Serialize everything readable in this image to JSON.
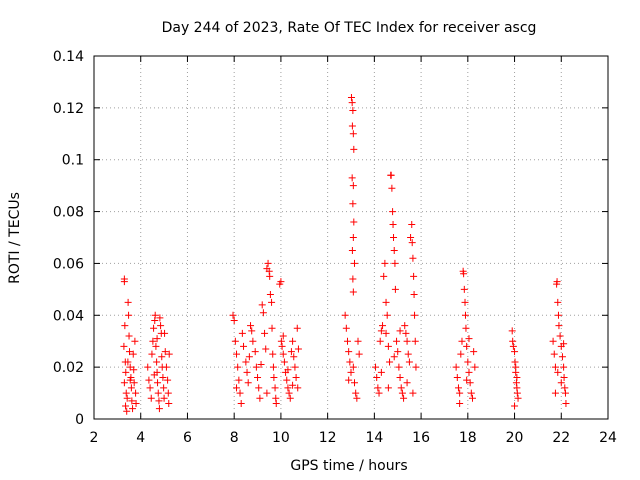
{
  "chart_data": {
    "type": "scatter",
    "title": "Day 244 of 2023, Rate Of TEC Index for receiver ascg",
    "xlabel": "GPS time / hours",
    "ylabel": "ROTI / TECUs",
    "xlim": [
      2,
      24
    ],
    "ylim": [
      0,
      0.14
    ],
    "x_ticks": [
      "2",
      "4",
      "6",
      "8",
      "10",
      "12",
      "14",
      "16",
      "18",
      "20",
      "22",
      "24"
    ],
    "y_ticks": [
      "0",
      "0.02",
      "0.04",
      "0.06",
      "0.08",
      "0.1",
      "0.12",
      "0.14"
    ],
    "grid": true,
    "marker": "+",
    "color": "#ff0000",
    "series": [
      {
        "points": [
          [
            3.3,
            0.054
          ],
          [
            3.3,
            0.053
          ],
          [
            3.32,
            0.036
          ],
          [
            3.28,
            0.028
          ],
          [
            3.34,
            0.022
          ],
          [
            3.36,
            0.018
          ],
          [
            3.3,
            0.014
          ],
          [
            3.38,
            0.01
          ],
          [
            3.42,
            0.008
          ],
          [
            3.35,
            0.005
          ],
          [
            3.4,
            0.003
          ],
          [
            3.46,
            0.045
          ],
          [
            3.48,
            0.04
          ],
          [
            3.5,
            0.032
          ],
          [
            3.52,
            0.026
          ],
          [
            3.55,
            0.02
          ],
          [
            3.58,
            0.016
          ],
          [
            3.6,
            0.012
          ],
          [
            3.62,
            0.007
          ],
          [
            3.65,
            0.004
          ],
          [
            3.68,
            0.025
          ],
          [
            3.7,
            0.019
          ],
          [
            3.72,
            0.014
          ],
          [
            3.75,
            0.03
          ],
          [
            3.78,
            0.01
          ],
          [
            3.8,
            0.006
          ],
          [
            3.45,
            0.022
          ],
          [
            3.55,
            0.015
          ],
          [
            4.3,
            0.02
          ],
          [
            4.35,
            0.015
          ],
          [
            4.4,
            0.012
          ],
          [
            4.45,
            0.008
          ],
          [
            4.48,
            0.025
          ],
          [
            4.52,
            0.03
          ],
          [
            4.55,
            0.035
          ],
          [
            4.6,
            0.038
          ],
          [
            4.62,
            0.04
          ],
          [
            4.65,
            0.028
          ],
          [
            4.68,
            0.022
          ],
          [
            4.7,
            0.018
          ],
          [
            4.72,
            0.014
          ],
          [
            4.75,
            0.01
          ],
          [
            4.78,
            0.007
          ],
          [
            4.8,
            0.004
          ],
          [
            4.82,
            0.039
          ],
          [
            4.85,
            0.036
          ],
          [
            4.88,
            0.033
          ],
          [
            4.9,
            0.024
          ],
          [
            4.92,
            0.02
          ],
          [
            4.95,
            0.016
          ],
          [
            4.98,
            0.012
          ],
          [
            5.0,
            0.008
          ],
          [
            5.05,
            0.026
          ],
          [
            5.1,
            0.02
          ],
          [
            5.15,
            0.015
          ],
          [
            5.18,
            0.01
          ],
          [
            5.2,
            0.006
          ],
          [
            5.22,
            0.025
          ],
          [
            4.58,
            0.017
          ],
          [
            4.7,
            0.031
          ],
          [
            5.02,
            0.033
          ],
          [
            7.95,
            0.04
          ],
          [
            8.0,
            0.038
          ],
          [
            8.05,
            0.03
          ],
          [
            8.1,
            0.025
          ],
          [
            8.15,
            0.02
          ],
          [
            8.2,
            0.015
          ],
          [
            8.25,
            0.01
          ],
          [
            8.3,
            0.006
          ],
          [
            8.4,
            0.028
          ],
          [
            8.5,
            0.022
          ],
          [
            8.55,
            0.018
          ],
          [
            8.6,
            0.014
          ],
          [
            8.7,
            0.036
          ],
          [
            8.75,
            0.034
          ],
          [
            8.8,
            0.03
          ],
          [
            8.9,
            0.026
          ],
          [
            8.95,
            0.02
          ],
          [
            9.0,
            0.016
          ],
          [
            9.05,
            0.012
          ],
          [
            9.1,
            0.008
          ],
          [
            9.2,
            0.044
          ],
          [
            9.25,
            0.041
          ],
          [
            9.3,
            0.033
          ],
          [
            9.35,
            0.027
          ],
          [
            9.4,
            0.058
          ],
          [
            9.45,
            0.06
          ],
          [
            9.5,
            0.057
          ],
          [
            9.52,
            0.055
          ],
          [
            9.55,
            0.048
          ],
          [
            9.6,
            0.045
          ],
          [
            9.62,
            0.035
          ],
          [
            9.65,
            0.025
          ],
          [
            9.68,
            0.02
          ],
          [
            9.7,
            0.016
          ],
          [
            9.75,
            0.012
          ],
          [
            9.78,
            0.008
          ],
          [
            9.8,
            0.006
          ],
          [
            8.35,
            0.033
          ],
          [
            8.65,
            0.024
          ],
          [
            9.15,
            0.021
          ],
          [
            8.1,
            0.012
          ],
          [
            9.4,
            0.01
          ],
          [
            9.95,
            0.052
          ],
          [
            10.0,
            0.053
          ],
          [
            10.02,
            0.03
          ],
          [
            10.05,
            0.028
          ],
          [
            10.1,
            0.025
          ],
          [
            10.15,
            0.022
          ],
          [
            10.2,
            0.018
          ],
          [
            10.25,
            0.015
          ],
          [
            10.3,
            0.012
          ],
          [
            10.35,
            0.01
          ],
          [
            10.4,
            0.008
          ],
          [
            10.45,
            0.026
          ],
          [
            10.5,
            0.03
          ],
          [
            10.55,
            0.024
          ],
          [
            10.6,
            0.02
          ],
          [
            10.65,
            0.016
          ],
          [
            10.7,
            0.035
          ],
          [
            10.72,
            0.012
          ],
          [
            10.75,
            0.027
          ],
          [
            10.1,
            0.032
          ],
          [
            10.3,
            0.019
          ],
          [
            10.5,
            0.013
          ],
          [
            12.75,
            0.04
          ],
          [
            12.8,
            0.035
          ],
          [
            12.85,
            0.03
          ],
          [
            12.9,
            0.026
          ],
          [
            12.95,
            0.022
          ],
          [
            13.0,
            0.018
          ],
          [
            13.02,
            0.124
          ],
          [
            13.05,
            0.122
          ],
          [
            13.08,
            0.119
          ],
          [
            13.06,
            0.113
          ],
          [
            13.1,
            0.11
          ],
          [
            13.12,
            0.104
          ],
          [
            13.05,
            0.093
          ],
          [
            13.1,
            0.09
          ],
          [
            13.08,
            0.083
          ],
          [
            13.12,
            0.076
          ],
          [
            13.1,
            0.07
          ],
          [
            13.06,
            0.065
          ],
          [
            13.15,
            0.06
          ],
          [
            13.08,
            0.054
          ],
          [
            13.1,
            0.049
          ],
          [
            13.15,
            0.014
          ],
          [
            13.2,
            0.01
          ],
          [
            13.25,
            0.008
          ],
          [
            13.3,
            0.03
          ],
          [
            13.35,
            0.025
          ],
          [
            12.9,
            0.015
          ],
          [
            13.1,
            0.02
          ],
          [
            14.05,
            0.02
          ],
          [
            14.1,
            0.016
          ],
          [
            14.15,
            0.012
          ],
          [
            14.2,
            0.01
          ],
          [
            14.25,
            0.03
          ],
          [
            14.3,
            0.034
          ],
          [
            14.35,
            0.036
          ],
          [
            14.4,
            0.055
          ],
          [
            14.45,
            0.06
          ],
          [
            14.5,
            0.045
          ],
          [
            14.55,
            0.04
          ],
          [
            14.6,
            0.028
          ],
          [
            14.65,
            0.022
          ],
          [
            14.7,
            0.094
          ],
          [
            14.72,
            0.094
          ],
          [
            14.75,
            0.089
          ],
          [
            14.78,
            0.08
          ],
          [
            14.8,
            0.075
          ],
          [
            14.82,
            0.07
          ],
          [
            14.85,
            0.065
          ],
          [
            14.88,
            0.06
          ],
          [
            14.9,
            0.05
          ],
          [
            14.95,
            0.03
          ],
          [
            15.0,
            0.026
          ],
          [
            15.05,
            0.02
          ],
          [
            15.1,
            0.016
          ],
          [
            15.15,
            0.012
          ],
          [
            15.2,
            0.01
          ],
          [
            15.25,
            0.008
          ],
          [
            15.3,
            0.036
          ],
          [
            15.35,
            0.033
          ],
          [
            15.4,
            0.03
          ],
          [
            15.45,
            0.025
          ],
          [
            15.5,
            0.022
          ],
          [
            15.55,
            0.07
          ],
          [
            15.6,
            0.075
          ],
          [
            15.62,
            0.068
          ],
          [
            15.65,
            0.062
          ],
          [
            15.68,
            0.055
          ],
          [
            15.7,
            0.048
          ],
          [
            15.72,
            0.04
          ],
          [
            15.75,
            0.03
          ],
          [
            15.78,
            0.02
          ],
          [
            14.3,
            0.018
          ],
          [
            14.6,
            0.012
          ],
          [
            14.85,
            0.024
          ],
          [
            15.1,
            0.034
          ],
          [
            15.4,
            0.014
          ],
          [
            15.65,
            0.01
          ],
          [
            14.5,
            0.033
          ],
          [
            17.5,
            0.02
          ],
          [
            17.55,
            0.016
          ],
          [
            17.6,
            0.012
          ],
          [
            17.65,
            0.01
          ],
          [
            17.7,
            0.025
          ],
          [
            17.75,
            0.03
          ],
          [
            17.8,
            0.057
          ],
          [
            17.82,
            0.056
          ],
          [
            17.85,
            0.05
          ],
          [
            17.88,
            0.045
          ],
          [
            17.9,
            0.04
          ],
          [
            17.92,
            0.035
          ],
          [
            17.95,
            0.028
          ],
          [
            18.0,
            0.022
          ],
          [
            18.05,
            0.018
          ],
          [
            18.1,
            0.014
          ],
          [
            18.15,
            0.01
          ],
          [
            18.2,
            0.008
          ],
          [
            18.25,
            0.026
          ],
          [
            18.3,
            0.02
          ],
          [
            17.65,
            0.006
          ],
          [
            17.95,
            0.015
          ],
          [
            18.05,
            0.031
          ],
          [
            19.9,
            0.034
          ],
          [
            19.92,
            0.03
          ],
          [
            19.95,
            0.028
          ],
          [
            20.0,
            0.026
          ],
          [
            20.02,
            0.022
          ],
          [
            20.05,
            0.018
          ],
          [
            20.08,
            0.014
          ],
          [
            20.1,
            0.012
          ],
          [
            20.12,
            0.01
          ],
          [
            20.15,
            0.008
          ],
          [
            20.0,
            0.005
          ],
          [
            20.05,
            0.02
          ],
          [
            20.1,
            0.016
          ],
          [
            21.65,
            0.03
          ],
          [
            21.7,
            0.025
          ],
          [
            21.75,
            0.02
          ],
          [
            21.8,
            0.052
          ],
          [
            21.82,
            0.053
          ],
          [
            21.85,
            0.045
          ],
          [
            21.88,
            0.04
          ],
          [
            21.9,
            0.036
          ],
          [
            21.95,
            0.032
          ],
          [
            22.0,
            0.028
          ],
          [
            22.05,
            0.024
          ],
          [
            22.1,
            0.02
          ],
          [
            22.12,
            0.016
          ],
          [
            22.15,
            0.012
          ],
          [
            22.18,
            0.01
          ],
          [
            22.2,
            0.006
          ],
          [
            21.85,
            0.018
          ],
          [
            22.0,
            0.014
          ],
          [
            21.75,
            0.01
          ],
          [
            22.1,
            0.029
          ]
        ]
      }
    ]
  }
}
